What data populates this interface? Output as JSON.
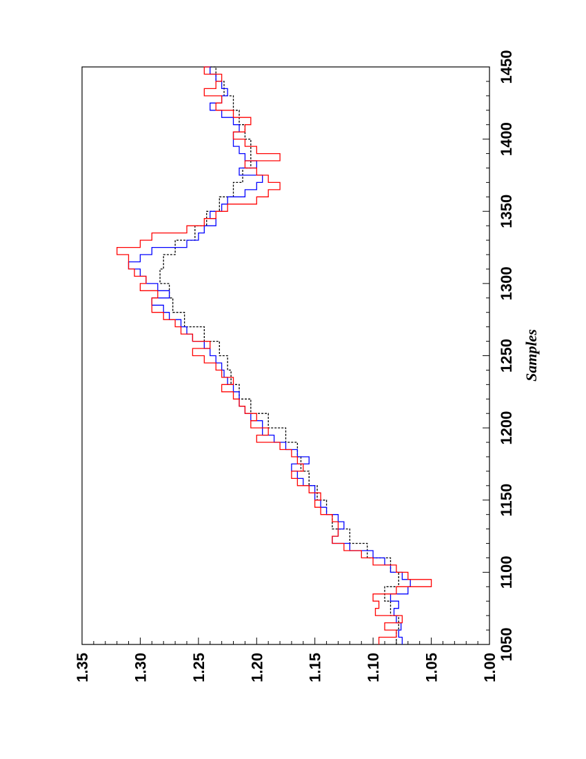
{
  "chart_data": {
    "type": "line",
    "orientation": "rotated-90-ccw",
    "xlabel": "Samples",
    "ylabel": "",
    "xlim": [
      1050,
      1450
    ],
    "ylim": [
      1.0,
      1.35
    ],
    "x_ticks": [
      "1050",
      "1100",
      "1150",
      "1200",
      "1250",
      "1300",
      "1350",
      "1400",
      "1450"
    ],
    "y_ticks": [
      "1.00",
      "1.05",
      "1.10",
      "1.15",
      "1.20",
      "1.25",
      "1.30",
      "1.35"
    ],
    "grid": false,
    "series": [
      {
        "color": "#000000",
        "style": "dashed",
        "x": [
          1050,
          1060,
          1070,
          1080,
          1090,
          1100,
          1110,
          1120,
          1130,
          1140,
          1150,
          1160,
          1170,
          1180,
          1190,
          1200,
          1210,
          1220,
          1230,
          1240,
          1250,
          1260,
          1270,
          1280,
          1290,
          1300,
          1310,
          1320,
          1330,
          1340,
          1350,
          1360,
          1370,
          1380,
          1390,
          1400,
          1410,
          1420,
          1430,
          1440,
          1450
        ],
        "y": [
          1.08,
          1.078,
          1.085,
          1.09,
          1.078,
          1.085,
          1.105,
          1.12,
          1.135,
          1.14,
          1.148,
          1.155,
          1.162,
          1.165,
          1.175,
          1.19,
          1.205,
          1.215,
          1.222,
          1.225,
          1.232,
          1.245,
          1.262,
          1.272,
          1.275,
          1.283,
          1.28,
          1.27,
          1.253,
          1.243,
          1.232,
          1.22,
          1.212,
          1.205,
          1.205,
          1.21,
          1.215,
          1.22,
          1.228,
          1.235,
          1.24
        ]
      },
      {
        "color": "#0000ff",
        "style": "solid",
        "x": [
          1050,
          1055,
          1060,
          1065,
          1070,
          1075,
          1080,
          1085,
          1090,
          1095,
          1100,
          1105,
          1110,
          1115,
          1120,
          1125,
          1130,
          1135,
          1140,
          1145,
          1150,
          1155,
          1160,
          1165,
          1170,
          1175,
          1180,
          1185,
          1190,
          1195,
          1200,
          1205,
          1210,
          1215,
          1220,
          1225,
          1230,
          1235,
          1240,
          1245,
          1250,
          1255,
          1260,
          1265,
          1270,
          1275,
          1280,
          1285,
          1290,
          1295,
          1300,
          1305,
          1310,
          1315,
          1320,
          1325,
          1330,
          1335,
          1340,
          1345,
          1350,
          1355,
          1360,
          1365,
          1370,
          1375,
          1380,
          1385,
          1390,
          1395,
          1400,
          1405,
          1410,
          1415,
          1420,
          1425,
          1430,
          1435,
          1440,
          1445,
          1450
        ],
        "y": [
          1.075,
          1.078,
          1.076,
          1.08,
          1.082,
          1.078,
          1.085,
          1.07,
          1.068,
          1.075,
          1.085,
          1.09,
          1.1,
          1.12,
          1.135,
          1.13,
          1.125,
          1.13,
          1.14,
          1.145,
          1.15,
          1.15,
          1.16,
          1.165,
          1.17,
          1.155,
          1.165,
          1.175,
          1.185,
          1.195,
          1.195,
          1.205,
          1.21,
          1.215,
          1.215,
          1.22,
          1.225,
          1.228,
          1.23,
          1.235,
          1.24,
          1.245,
          1.255,
          1.26,
          1.265,
          1.275,
          1.28,
          1.29,
          1.275,
          1.285,
          1.295,
          1.3,
          1.31,
          1.3,
          1.29,
          1.26,
          1.25,
          1.245,
          1.235,
          1.24,
          1.23,
          1.225,
          1.21,
          1.2,
          1.195,
          1.215,
          1.2,
          1.21,
          1.215,
          1.22,
          1.22,
          1.215,
          1.22,
          1.23,
          1.24,
          1.23,
          1.225,
          1.23,
          1.235,
          1.24,
          1.245
        ]
      },
      {
        "color": "#ff0000",
        "style": "solid",
        "x": [
          1050,
          1055,
          1060,
          1065,
          1070,
          1075,
          1080,
          1085,
          1090,
          1095,
          1100,
          1105,
          1110,
          1115,
          1120,
          1125,
          1130,
          1135,
          1140,
          1145,
          1150,
          1155,
          1160,
          1165,
          1170,
          1175,
          1180,
          1185,
          1190,
          1195,
          1200,
          1205,
          1210,
          1215,
          1220,
          1225,
          1230,
          1235,
          1240,
          1245,
          1250,
          1255,
          1260,
          1265,
          1270,
          1275,
          1280,
          1285,
          1290,
          1295,
          1300,
          1305,
          1310,
          1315,
          1320,
          1325,
          1330,
          1335,
          1340,
          1345,
          1350,
          1355,
          1360,
          1365,
          1370,
          1375,
          1380,
          1385,
          1390,
          1395,
          1400,
          1405,
          1410,
          1415,
          1420,
          1425,
          1430,
          1435,
          1440,
          1445,
          1450
        ],
        "y": [
          1.095,
          1.08,
          1.09,
          1.075,
          1.098,
          1.095,
          1.1,
          1.08,
          1.05,
          1.07,
          1.08,
          1.1,
          1.11,
          1.125,
          1.135,
          1.13,
          1.13,
          1.135,
          1.145,
          1.15,
          1.145,
          1.155,
          1.165,
          1.17,
          1.16,
          1.165,
          1.17,
          1.18,
          1.2,
          1.19,
          1.205,
          1.2,
          1.21,
          1.215,
          1.22,
          1.23,
          1.22,
          1.23,
          1.235,
          1.245,
          1.255,
          1.24,
          1.255,
          1.265,
          1.27,
          1.28,
          1.29,
          1.29,
          1.285,
          1.3,
          1.295,
          1.305,
          1.31,
          1.31,
          1.32,
          1.3,
          1.29,
          1.26,
          1.245,
          1.235,
          1.225,
          1.2,
          1.19,
          1.18,
          1.19,
          1.2,
          1.21,
          1.18,
          1.2,
          1.21,
          1.22,
          1.21,
          1.205,
          1.22,
          1.235,
          1.23,
          1.245,
          1.235,
          1.23,
          1.245,
          1.24
        ]
      }
    ]
  }
}
